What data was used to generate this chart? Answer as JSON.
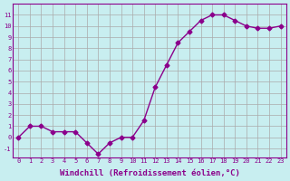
{
  "x": [
    0,
    1,
    2,
    3,
    4,
    5,
    6,
    7,
    8,
    9,
    10,
    11,
    12,
    13,
    14,
    15,
    16,
    17,
    18,
    19,
    20,
    21,
    22,
    23
  ],
  "y": [
    0,
    1,
    1,
    0.5,
    0.5,
    0.5,
    -0.5,
    -1.5,
    -0.5,
    0,
    0,
    1.5,
    4.5,
    6.5,
    8.5,
    9.5,
    10.5,
    11,
    11,
    10.5,
    10,
    9.8,
    9.8,
    10
  ],
  "line_color": "#8B008B",
  "marker": "D",
  "marker_size": 2.5,
  "background_color": "#c8eef0",
  "grid_color": "#aaaaaa",
  "xlabel": "Windchill (Refroidissement éolien,°C)",
  "xlabel_fontsize": 6.5,
  "ylabel_ticks": [
    -1,
    0,
    1,
    2,
    3,
    4,
    5,
    6,
    7,
    8,
    9,
    10,
    11
  ],
  "xticks": [
    0,
    1,
    2,
    3,
    4,
    5,
    6,
    7,
    8,
    9,
    10,
    11,
    12,
    13,
    14,
    15,
    16,
    17,
    18,
    19,
    20,
    21,
    22,
    23
  ],
  "ylim": [
    -1.8,
    12
  ],
  "xlim": [
    -0.5,
    23.5
  ]
}
